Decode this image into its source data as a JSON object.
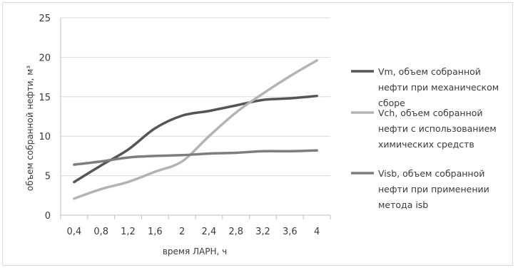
{
  "chart_data": {
    "type": "line",
    "title": "",
    "xlabel": "время ЛАРН, ч",
    "ylabel": "объем собранной нефти, м³",
    "ylim": [
      0,
      25
    ],
    "y_ticks": [
      "0",
      "5",
      "10",
      "15",
      "20",
      "25"
    ],
    "x": [
      0.4,
      0.8,
      1.2,
      1.6,
      2.0,
      2.4,
      2.8,
      3.2,
      3.6,
      4.0
    ],
    "x_tick_labels": [
      "0,4",
      "0,8",
      "1,2",
      "1,6",
      "2",
      "2,4",
      "2,8",
      "3,2",
      "3,6",
      "4"
    ],
    "grid": "horizontal",
    "legend_position": "right",
    "series": [
      {
        "name": "Vm, объем собранной нефти при механическом сборе",
        "legend_lines": [
          "Vm, объем собранной",
          "нефти при механическом",
          "сборе"
        ],
        "color": "#555555",
        "values": [
          4.2,
          6.3,
          8.3,
          11.0,
          12.6,
          13.2,
          13.9,
          14.6,
          14.8,
          15.1
        ]
      },
      {
        "name": "Vch, объем собранной нефти с использованием химических средств",
        "legend_lines": [
          "Vch, объем собранной",
          "нефти с использованием",
          "химических средств"
        ],
        "color": "#b3b3b3",
        "values": [
          2.1,
          3.3,
          4.2,
          5.5,
          6.8,
          10.0,
          13.0,
          15.4,
          17.6,
          19.6
        ]
      },
      {
        "name": "Visb, объем собранной нефти при применении метода isb",
        "legend_lines": [
          "Visb, объем собранной",
          "нефти при применении",
          "метода isb"
        ],
        "color": "#7d7d7d",
        "values": [
          6.4,
          6.8,
          7.3,
          7.5,
          7.6,
          7.8,
          7.9,
          8.1,
          8.1,
          8.2
        ]
      }
    ]
  }
}
